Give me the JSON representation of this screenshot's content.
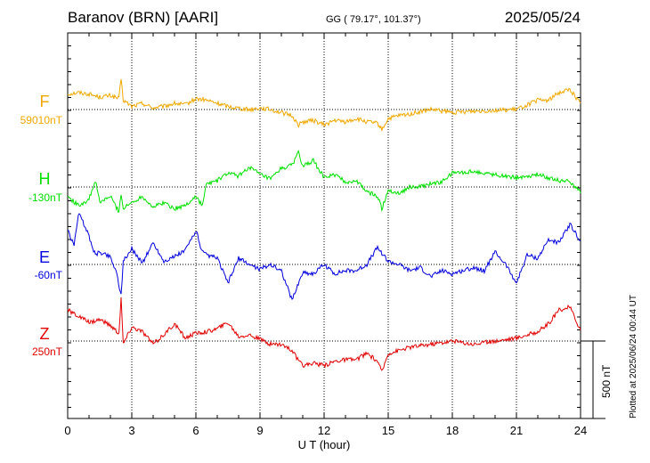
{
  "header": {
    "station": "Baranov (BRN)  [AARI]",
    "coords": "GG ( 79.17°, 101.37°)",
    "date": "2025/05/24"
  },
  "footer": {
    "plotted": "Plotted at 2025/06/24 00:44 UT",
    "scale": "500 nT"
  },
  "chart_data": {
    "type": "line",
    "xlabel": "U T (hour)",
    "xlim": [
      0,
      24
    ],
    "xticks": [
      0,
      3,
      6,
      9,
      12,
      15,
      18,
      21,
      24
    ],
    "scale_bar_nT": 500,
    "colors": {
      "F": "#f0a800",
      "H": "#00e000",
      "E": "#0000dd",
      "Z": "#e00000"
    },
    "series": [
      {
        "name": "F",
        "baseline_label": "59010nT",
        "x": [
          0,
          0.5,
          1,
          1.5,
          2,
          2.4,
          2.5,
          2.6,
          3,
          3.5,
          4,
          4.5,
          5,
          5.5,
          6,
          6.5,
          7,
          7.5,
          8,
          8.5,
          9,
          9.5,
          10,
          10.5,
          10.8,
          11,
          11.5,
          12,
          12.5,
          13,
          13.5,
          14,
          14.5,
          14.7,
          15,
          15.5,
          16,
          17,
          18,
          19,
          20,
          21,
          22,
          22.5,
          23,
          23.5,
          24
        ],
        "y": [
          100,
          110,
          100,
          80,
          90,
          70,
          200,
          60,
          20,
          40,
          10,
          20,
          40,
          30,
          70,
          60,
          40,
          20,
          10,
          0,
          10,
          0,
          -20,
          -40,
          -100,
          -80,
          -70,
          -100,
          -70,
          -80,
          -60,
          -80,
          -90,
          -130,
          -60,
          -40,
          -30,
          0,
          -20,
          -10,
          -5,
          0,
          60,
          60,
          110,
          130,
          40
        ]
      },
      {
        "name": "H",
        "baseline_label": "-130nT",
        "x": [
          0,
          0.5,
          1,
          1.3,
          1.5,
          2,
          2.4,
          2.5,
          2.6,
          3,
          3.5,
          4,
          4.5,
          5,
          5.5,
          6,
          6.3,
          6.5,
          7,
          7.5,
          8,
          8.5,
          9,
          9.5,
          10,
          10.5,
          10.8,
          11,
          11.5,
          12,
          12.5,
          13,
          13.5,
          14,
          14.5,
          14.7,
          15,
          15.5,
          16,
          16.5,
          17,
          17.5,
          18,
          19,
          20,
          21,
          22,
          23,
          23.5,
          24
        ],
        "y": [
          -60,
          -120,
          -80,
          40,
          -100,
          -60,
          -160,
          -40,
          -140,
          -100,
          -60,
          -130,
          -100,
          -140,
          -120,
          -60,
          -120,
          20,
          40,
          90,
          70,
          130,
          80,
          50,
          120,
          140,
          230,
          130,
          170,
          60,
          80,
          30,
          40,
          -30,
          -60,
          -140,
          -20,
          -40,
          0,
          0,
          20,
          30,
          90,
          100,
          80,
          60,
          80,
          40,
          40,
          -40
        ]
      },
      {
        "name": "E",
        "baseline_label": "-60nT",
        "x": [
          0,
          0.3,
          0.5,
          0.8,
          1,
          1.3,
          1.5,
          2,
          2.3,
          2.5,
          2.6,
          3,
          3.5,
          4,
          4.5,
          5,
          5.5,
          6,
          6.3,
          6.5,
          7,
          7.5,
          8,
          8.5,
          9,
          9.5,
          10,
          10.5,
          11,
          11.5,
          12,
          12.5,
          13,
          13.5,
          14,
          14.5,
          15,
          15.5,
          16,
          16.5,
          17,
          17.5,
          18,
          18.5,
          19,
          19.5,
          20,
          20.5,
          21,
          21.5,
          22,
          22.5,
          23,
          23.5,
          24
        ],
        "y": [
          220,
          120,
          330,
          250,
          180,
          60,
          80,
          50,
          -60,
          -200,
          20,
          100,
          10,
          140,
          20,
          50,
          90,
          220,
          80,
          60,
          40,
          -120,
          40,
          0,
          -30,
          0,
          -40,
          -230,
          -50,
          -60,
          0,
          -60,
          -40,
          -40,
          0,
          110,
          20,
          0,
          -40,
          -20,
          -80,
          -40,
          -60,
          -40,
          -20,
          -40,
          80,
          0,
          -120,
          60,
          40,
          160,
          140,
          260,
          150
        ]
      },
      {
        "name": "Z",
        "baseline_label": "250nT",
        "x": [
          0,
          0.5,
          1,
          1.5,
          2,
          2.4,
          2.5,
          2.6,
          3,
          3.5,
          4,
          4.5,
          5,
          5.5,
          6,
          6.5,
          7,
          7.5,
          8,
          8.5,
          9,
          9.5,
          10,
          10.5,
          10.8,
          11,
          11.5,
          12,
          12.5,
          13,
          13.5,
          14,
          14.5,
          14.7,
          15,
          15.5,
          16,
          17,
          18,
          19,
          20,
          21,
          22,
          22.5,
          23,
          23.5,
          24
        ],
        "y": [
          200,
          160,
          120,
          140,
          100,
          50,
          280,
          -20,
          90,
          60,
          -20,
          40,
          110,
          20,
          50,
          60,
          80,
          120,
          30,
          40,
          10,
          -20,
          -20,
          -60,
          -130,
          -160,
          -140,
          -160,
          -130,
          -120,
          -120,
          -80,
          -130,
          -200,
          -80,
          -60,
          -40,
          -20,
          0,
          -20,
          0,
          20,
          60,
          110,
          200,
          220,
          70
        ]
      }
    ]
  }
}
